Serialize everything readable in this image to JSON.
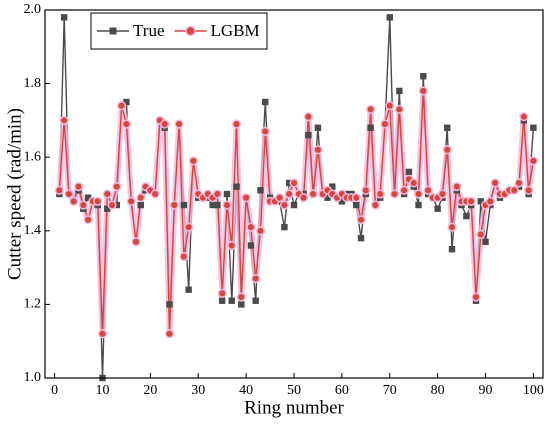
{
  "chart_data": {
    "type": "line",
    "x_label": "Ring number",
    "y_label": "Cutter speed (rad/min)",
    "x": [
      1,
      2,
      3,
      4,
      5,
      6,
      7,
      8,
      9,
      10,
      11,
      12,
      13,
      14,
      15,
      16,
      17,
      18,
      19,
      20,
      21,
      22,
      23,
      24,
      25,
      26,
      27,
      28,
      29,
      30,
      31,
      32,
      33,
      34,
      35,
      36,
      37,
      38,
      39,
      40,
      41,
      42,
      43,
      44,
      45,
      46,
      47,
      48,
      49,
      50,
      51,
      52,
      53,
      54,
      55,
      56,
      57,
      58,
      59,
      60,
      61,
      62,
      63,
      64,
      65,
      66,
      67,
      68,
      69,
      70,
      71,
      72,
      73,
      74,
      75,
      76,
      77,
      78,
      79,
      80,
      81,
      82,
      83,
      84,
      85,
      86,
      87,
      88,
      89,
      90,
      91,
      92,
      93,
      94,
      95,
      96,
      97,
      98,
      99,
      100
    ],
    "series": [
      {
        "name": "True",
        "color": "#4a4a4a",
        "marker": "square",
        "values": [
          1.5,
          1.98,
          1.5,
          1.48,
          1.51,
          1.46,
          1.49,
          1.48,
          1.47,
          1.0,
          1.46,
          1.47,
          1.47,
          1.74,
          1.75,
          1.48,
          1.37,
          1.47,
          1.51,
          1.51,
          1.5,
          1.7,
          1.68,
          1.2,
          1.47,
          1.69,
          1.47,
          1.24,
          1.59,
          1.49,
          1.49,
          1.49,
          1.47,
          1.47,
          1.21,
          1.5,
          1.21,
          1.52,
          1.2,
          1.49,
          1.36,
          1.21,
          1.51,
          1.75,
          1.49,
          1.48,
          1.48,
          1.41,
          1.53,
          1.47,
          1.5,
          1.5,
          1.66,
          1.5,
          1.68,
          1.5,
          1.49,
          1.52,
          1.49,
          1.48,
          1.5,
          1.5,
          1.47,
          1.38,
          1.5,
          1.68,
          1.47,
          1.49,
          1.69,
          1.98,
          1.5,
          1.78,
          1.5,
          1.56,
          1.52,
          1.47,
          1.82,
          1.5,
          1.49,
          1.46,
          1.49,
          1.68,
          1.35,
          1.51,
          1.47,
          1.44,
          1.47,
          1.21,
          1.48,
          1.37,
          1.47,
          1.53,
          1.49,
          1.5,
          1.51,
          1.51,
          1.52,
          1.7,
          1.5,
          1.68
        ]
      },
      {
        "name": "LGBM",
        "color": "#d9453a",
        "marker": "circle",
        "values": [
          1.51,
          1.7,
          1.5,
          1.48,
          1.52,
          1.47,
          1.43,
          1.48,
          1.48,
          1.12,
          1.5,
          1.47,
          1.52,
          1.74,
          1.69,
          1.48,
          1.37,
          1.49,
          1.52,
          1.51,
          1.5,
          1.7,
          1.69,
          1.12,
          1.47,
          1.69,
          1.33,
          1.41,
          1.59,
          1.5,
          1.49,
          1.5,
          1.49,
          1.5,
          1.23,
          1.47,
          1.36,
          1.69,
          1.22,
          1.49,
          1.41,
          1.27,
          1.4,
          1.67,
          1.48,
          1.48,
          1.49,
          1.47,
          1.5,
          1.53,
          1.5,
          1.49,
          1.71,
          1.5,
          1.62,
          1.5,
          1.51,
          1.5,
          1.49,
          1.5,
          1.49,
          1.49,
          1.49,
          1.43,
          1.51,
          1.73,
          1.47,
          1.5,
          1.69,
          1.74,
          1.5,
          1.73,
          1.51,
          1.54,
          1.53,
          1.5,
          1.78,
          1.51,
          1.49,
          1.49,
          1.5,
          1.62,
          1.41,
          1.52,
          1.48,
          1.48,
          1.48,
          1.22,
          1.39,
          1.47,
          1.48,
          1.53,
          1.5,
          1.5,
          1.51,
          1.51,
          1.53,
          1.71,
          1.51,
          1.59
        ]
      }
    ],
    "xlim": [
      -2,
      102
    ],
    "ylim": [
      1.0,
      2.0
    ],
    "xticks": [
      0,
      10,
      20,
      30,
      40,
      50,
      60,
      70,
      80,
      90,
      100
    ],
    "yticks": [
      {
        "value": 1.0,
        "label": "1.0"
      },
      {
        "value": 1.2,
        "label": "1.2"
      },
      {
        "value": 1.4,
        "label": "1.4"
      },
      {
        "value": 1.6,
        "label": "1.6"
      },
      {
        "value": 1.8,
        "label": "1.8"
      },
      {
        "value": 2.0,
        "label": "2.0"
      }
    ],
    "legend_position": "upper left"
  }
}
